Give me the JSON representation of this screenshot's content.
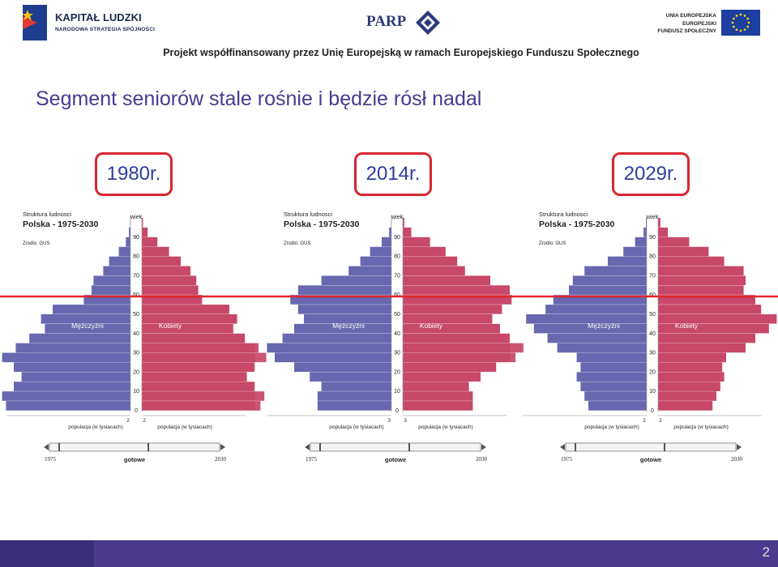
{
  "header": {
    "kl_title": "KAPITAŁ LUDZKI",
    "kl_subtitle": "NARODOWA STRATEGIA SPÓJNOŚCI",
    "parp": "PARP",
    "ue_line1": "UNIA EUROPEJSKA",
    "ue_line2": "EUROPEJSKI",
    "ue_line3": "FUNDUSZ SPOŁECZNY",
    "cofinancing": "Projekt współfinansowany przez Unię Europejską w ramach Europejskiego Funduszu Społecznego"
  },
  "slide_title": "Segment seniorów stale rośnie i będzie rósł nadal",
  "years": [
    "1980r.",
    "2014r.",
    "2029r."
  ],
  "page_number": "2",
  "colors": {
    "men": "#5a5aa8",
    "women": "#c2365a",
    "accent": "#d8262e",
    "title": "#4a3a8e"
  },
  "chart_data": [
    {
      "type": "bar",
      "orientation": "population-pyramid",
      "panel_label": "1980r.",
      "title": "Struktura ludnosci",
      "subtitle": "Polska - 1975-2030",
      "source": "Zrodlo: GUS",
      "axis_title": "wiek",
      "age_ticks": [
        "0",
        "10",
        "20",
        "30",
        "40",
        "50",
        "60",
        "70",
        "80",
        "90"
      ],
      "xlabel_left": "populacja (w tysiacach)",
      "xlabel_right": "populacja (w tysiacach)",
      "x_tick": "2",
      "series": [
        {
          "name": "Mężczyźni",
          "side": "left",
          "age": [
            0,
            5,
            10,
            15,
            20,
            25,
            30,
            35,
            40,
            45,
            50,
            55,
            60,
            65,
            70,
            75,
            80,
            85,
            90,
            95
          ],
          "values": [
            320,
            330,
            300,
            280,
            300,
            330,
            295,
            260,
            220,
            230,
            200,
            120,
            100,
            95,
            70,
            55,
            30,
            12,
            4,
            1
          ]
        },
        {
          "name": "Kobiety",
          "side": "right",
          "age": [
            0,
            5,
            10,
            15,
            20,
            25,
            30,
            35,
            40,
            45,
            50,
            55,
            60,
            65,
            70,
            75,
            80,
            85,
            90,
            95
          ],
          "values": [
            305,
            315,
            290,
            270,
            290,
            320,
            300,
            265,
            235,
            245,
            225,
            155,
            145,
            140,
            125,
            100,
            70,
            40,
            15,
            3
          ]
        }
      ],
      "slider": {
        "start": "1975",
        "end": "2030",
        "label": "gotowe"
      }
    },
    {
      "type": "bar",
      "orientation": "population-pyramid",
      "panel_label": "2014r.",
      "title": "Struktura ludnosci",
      "subtitle": "Polska - 1975-2030",
      "source": "Zrodlo: GUS",
      "axis_title": "wiek",
      "age_ticks": [
        "0",
        "10",
        "20",
        "30",
        "40",
        "50",
        "60",
        "70",
        "80",
        "90"
      ],
      "xlabel_left": "populacja (w tysiacach)",
      "xlabel_right": "populacja (w tysiacach)",
      "x_tick": "3",
      "series": [
        {
          "name": "Mężczyźni",
          "side": "left",
          "age": [
            0,
            5,
            10,
            15,
            20,
            25,
            30,
            35,
            40,
            45,
            50,
            55,
            60,
            65,
            70,
            75,
            80,
            85,
            90,
            95
          ],
          "values": [
            190,
            190,
            180,
            210,
            250,
            300,
            320,
            280,
            250,
            225,
            240,
            260,
            240,
            180,
            110,
            80,
            55,
            25,
            6,
            1
          ]
        },
        {
          "name": "Kobiety",
          "side": "right",
          "age": [
            0,
            5,
            10,
            15,
            20,
            25,
            30,
            35,
            40,
            45,
            50,
            55,
            60,
            65,
            70,
            75,
            80,
            85,
            90,
            95
          ],
          "values": [
            180,
            180,
            170,
            200,
            240,
            290,
            310,
            275,
            250,
            230,
            255,
            280,
            275,
            225,
            160,
            140,
            110,
            70,
            22,
            4
          ]
        }
      ],
      "slider": {
        "start": "1975",
        "end": "2030",
        "label": "gotowe"
      }
    },
    {
      "type": "bar",
      "orientation": "population-pyramid",
      "panel_label": "2029r.",
      "title": "Struktura ludnosci",
      "subtitle": "Polska - 1975-2030",
      "source": "Zrodlo: GUS",
      "axis_title": "wiek",
      "age_ticks": [
        "0",
        "10",
        "20",
        "30",
        "40",
        "50",
        "60",
        "70",
        "80",
        "90"
      ],
      "xlabel_left": "populacja (w tysiacach)",
      "xlabel_right": "populacja (w tysiacach)",
      "x_tick": "2",
      "series": [
        {
          "name": "Mężczyźni",
          "side": "left",
          "age": [
            0,
            5,
            10,
            15,
            20,
            25,
            30,
            35,
            40,
            45,
            50,
            55,
            60,
            65,
            70,
            75,
            80,
            85,
            90,
            95
          ],
          "values": [
            150,
            160,
            170,
            180,
            170,
            180,
            230,
            255,
            290,
            310,
            260,
            240,
            200,
            190,
            160,
            100,
            60,
            30,
            8,
            2
          ]
        },
        {
          "name": "Kobiety",
          "side": "right",
          "age": [
            0,
            5,
            10,
            15,
            20,
            25,
            30,
            35,
            40,
            45,
            50,
            55,
            60,
            65,
            70,
            75,
            80,
            85,
            90,
            95
          ],
          "values": [
            140,
            150,
            160,
            170,
            165,
            175,
            225,
            250,
            285,
            305,
            265,
            250,
            220,
            225,
            220,
            170,
            130,
            80,
            25,
            6
          ]
        }
      ],
      "slider": {
        "start": "1975",
        "end": "2030",
        "label": "gotowe"
      }
    }
  ]
}
